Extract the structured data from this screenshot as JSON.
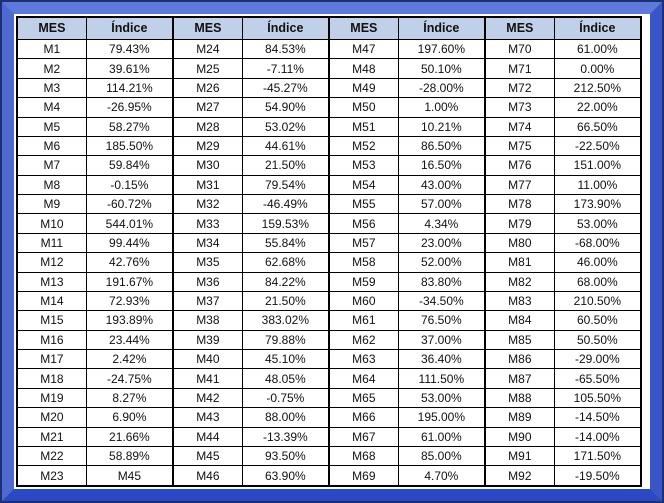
{
  "table": {
    "column_headers": [
      "MES",
      "Índice",
      "MES",
      "Índice",
      "MES",
      "Índice",
      "MES",
      "Índice"
    ],
    "rows": [
      [
        "M1",
        "79.43%",
        "M24",
        "84.53%",
        "M47",
        "197.60%",
        "M70",
        "61.00%"
      ],
      [
        "M2",
        "39.61%",
        "M25",
        "-7.11%",
        "M48",
        "50.10%",
        "M71",
        "0.00%"
      ],
      [
        "M3",
        "114.21%",
        "M26",
        "-45.27%",
        "M49",
        "-28.00%",
        "M72",
        "212.50%"
      ],
      [
        "M4",
        "-26.95%",
        "M27",
        "54.90%",
        "M50",
        "1.00%",
        "M73",
        "22.00%"
      ],
      [
        "M5",
        "58.27%",
        "M28",
        "53.02%",
        "M51",
        "10.21%",
        "M74",
        "66.50%"
      ],
      [
        "M6",
        "185.50%",
        "M29",
        "44.61%",
        "M52",
        "86.50%",
        "M75",
        "-22.50%"
      ],
      [
        "M7",
        "59.84%",
        "M30",
        "21.50%",
        "M53",
        "16.50%",
        "M76",
        "151.00%"
      ],
      [
        "M8",
        "-0.15%",
        "M31",
        "79.54%",
        "M54",
        "43.00%",
        "M77",
        "11.00%"
      ],
      [
        "M9",
        "-60.72%",
        "M32",
        "-46.49%",
        "M55",
        "57.00%",
        "M78",
        "173.90%"
      ],
      [
        "M10",
        "544.01%",
        "M33",
        "159.53%",
        "M56",
        "4.34%",
        "M79",
        "53.00%"
      ],
      [
        "M11",
        "99.44%",
        "M34",
        "55.84%",
        "M57",
        "23.00%",
        "M80",
        "-68.00%"
      ],
      [
        "M12",
        "42.76%",
        "M35",
        "62.68%",
        "M58",
        "52.00%",
        "M81",
        "46.00%"
      ],
      [
        "M13",
        "191.67%",
        "M36",
        "84.22%",
        "M59",
        "83.80%",
        "M82",
        "68.00%"
      ],
      [
        "M14",
        "72.93%",
        "M37",
        "21.50%",
        "M60",
        "-34.50%",
        "M83",
        "210.50%"
      ],
      [
        "M15",
        "193.89%",
        "M38",
        "383.02%",
        "M61",
        "76.50%",
        "M84",
        "60.50%"
      ],
      [
        "M16",
        "23.44%",
        "M39",
        "79.88%",
        "M62",
        "37.00%",
        "M85",
        "50.50%"
      ],
      [
        "M17",
        "2.42%",
        "M40",
        "45.10%",
        "M63",
        "36.40%",
        "M86",
        "-29.00%"
      ],
      [
        "M18",
        "-24.75%",
        "M41",
        "48.05%",
        "M64",
        "111.50%",
        "M87",
        "-65.50%"
      ],
      [
        "M19",
        "8.27%",
        "M42",
        "-0.75%",
        "M65",
        "53.00%",
        "M88",
        "105.50%"
      ],
      [
        "M20",
        "6.90%",
        "M43",
        "88.00%",
        "M66",
        "195.00%",
        "M89",
        "-14.50%"
      ],
      [
        "M21",
        "21.66%",
        "M44",
        "-13.39%",
        "M67",
        "61.00%",
        "M90",
        "-14.00%"
      ],
      [
        "M22",
        "58.89%",
        "M45",
        "93.50%",
        "M68",
        "85.00%",
        "M91",
        "171.50%"
      ],
      [
        "M23",
        "M45",
        "M46",
        "63.90%",
        "M69",
        "4.70%",
        "M92",
        "-19.50%"
      ]
    ]
  },
  "colors": {
    "header_fill": "#bfd0e8",
    "cell_border": "#000000",
    "frame_outline": "#1d3170",
    "frame_top": "#5c79db",
    "frame_left": "#4e6ad0",
    "frame_right": "#3a56c6",
    "frame_bottom": "#2b49c4"
  }
}
